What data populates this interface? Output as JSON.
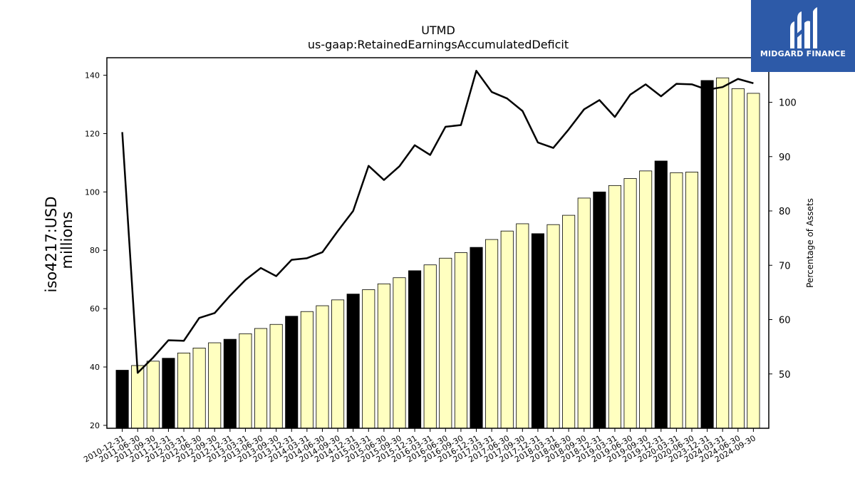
{
  "brand": {
    "name": "MIDGARD FINANCE",
    "bg_color": "#2d5aa8"
  },
  "chart_data": {
    "type": "bar",
    "title": "UTMD",
    "subtitle": "us-gaap:RetainedEarningsAccumulatedDeficit",
    "ylabel": "iso4217:USD\nmillions",
    "y2label": "Percentage of Assets",
    "ylim": [
      19.0,
      146.0
    ],
    "y2lim": [
      40.0,
      108.2
    ],
    "yticks": [
      20,
      40,
      60,
      80,
      100,
      120,
      140
    ],
    "y2ticks": [
      50,
      60,
      70,
      80,
      90,
      100
    ],
    "categories": [
      "2010-12-31",
      "2011-06-30",
      "2011-09-30",
      "2011-12-31",
      "2012-03-31",
      "2012-06-30",
      "2012-09-30",
      "2012-12-31",
      "2013-03-31",
      "2013-06-30",
      "2013-09-30",
      "2013-12-31",
      "2014-03-31",
      "2014-06-30",
      "2014-09-30",
      "2014-12-31",
      "2015-03-31",
      "2015-06-30",
      "2015-09-30",
      "2015-12-31",
      "2016-03-31",
      "2016-06-30",
      "2016-09-30",
      "2016-12-31",
      "2017-03-31",
      "2017-06-30",
      "2017-09-30",
      "2017-12-31",
      "2018-03-31",
      "2018-06-30",
      "2018-09-30",
      "2018-12-31",
      "2019-03-31",
      "2019-06-30",
      "2019-09-30",
      "2019-12-31",
      "2020-03-31",
      "2020-06-30",
      "2023-12-31",
      "2024-03-31",
      "2024-06-30",
      "2024-09-30"
    ],
    "series": [
      {
        "name": "",
        "axis": "left",
        "kind": "bar",
        "values": [
          38.9,
          40.5,
          42.0,
          43.0,
          44.8,
          46.5,
          48.3,
          49.5,
          51.4,
          53.2,
          54.6,
          57.4,
          59.0,
          61.0,
          63.0,
          65.0,
          66.5,
          68.5,
          70.6,
          73.0,
          75.0,
          77.3,
          79.2,
          81.0,
          83.7,
          86.6,
          89.1,
          85.7,
          88.8,
          92.0,
          97.9,
          100.0,
          102.2,
          104.6,
          107.2,
          110.6,
          106.6,
          106.8,
          138.2,
          139.1,
          135.4,
          133.8
        ],
        "highlight_color": "#000000",
        "normal_color": "#ffffc0",
        "highlighted": [
          true,
          false,
          false,
          true,
          false,
          false,
          false,
          true,
          false,
          false,
          false,
          true,
          false,
          false,
          false,
          true,
          false,
          false,
          false,
          true,
          false,
          false,
          false,
          true,
          false,
          false,
          false,
          true,
          false,
          false,
          false,
          true,
          false,
          false,
          false,
          true,
          false,
          false,
          true,
          false,
          false,
          false
        ]
      },
      {
        "name": "",
        "axis": "right",
        "kind": "line",
        "color": "#000000",
        "values": [
          94.5,
          50.2,
          53.0,
          56.2,
          56.1,
          60.3,
          61.2,
          64.4,
          67.3,
          69.5,
          68.0,
          71.0,
          71.3,
          72.4,
          76.3,
          80.0,
          88.3,
          85.7,
          88.2,
          92.1,
          90.3,
          95.5,
          95.8,
          105.8,
          101.9,
          100.7,
          98.4,
          92.6,
          91.6,
          95.0,
          98.7,
          100.4,
          97.3,
          101.4,
          103.3,
          101.1,
          103.4,
          103.3,
          102.3,
          102.8,
          104.3,
          103.5
        ]
      }
    ]
  }
}
